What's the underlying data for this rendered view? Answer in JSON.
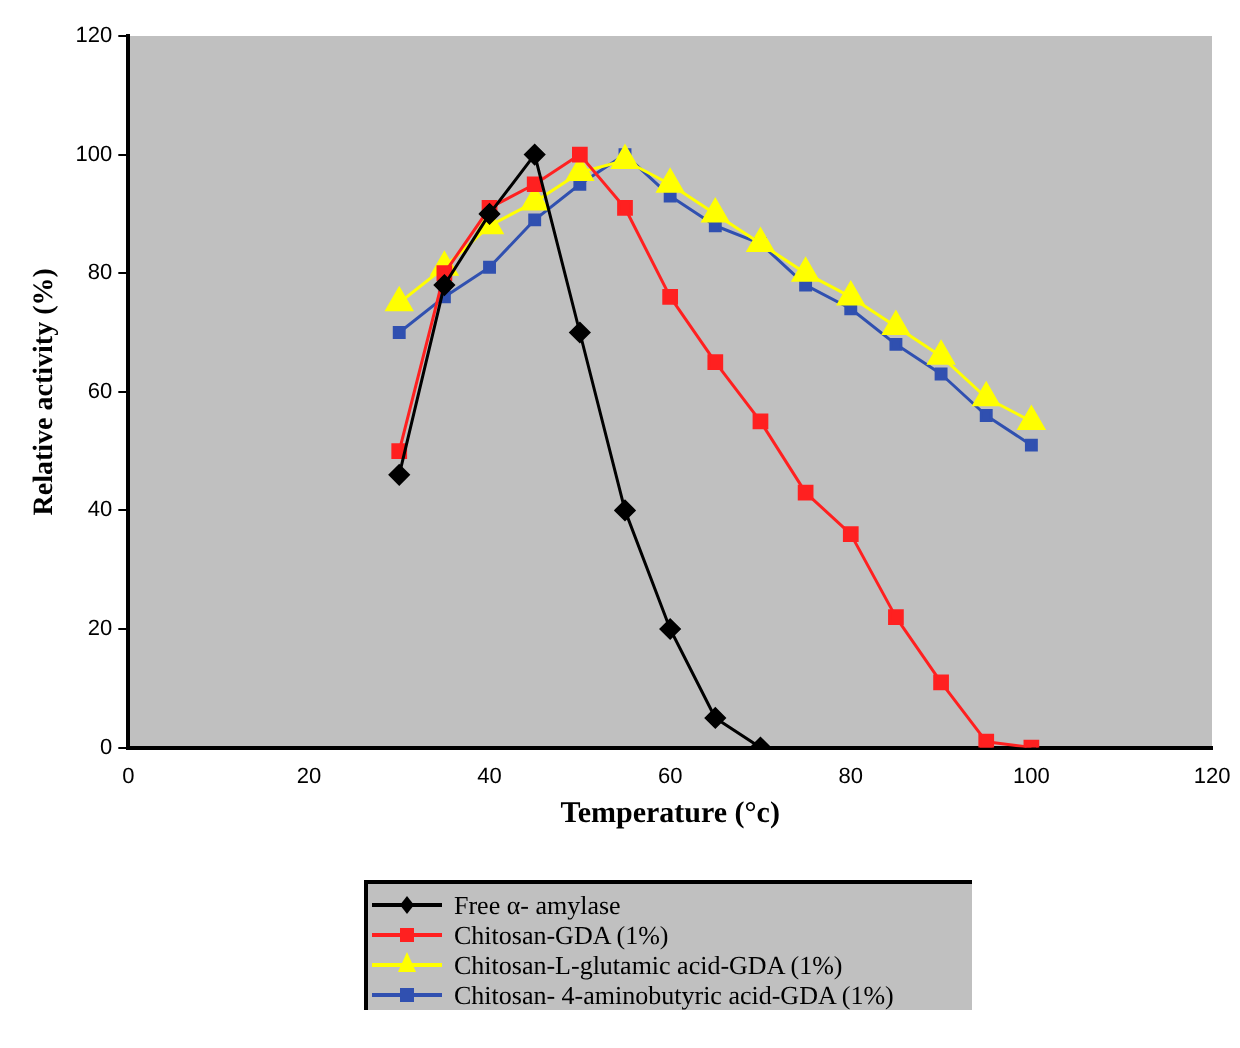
{
  "chart_data": {
    "type": "line",
    "xlabel": "Temperature (°c)",
    "ylabel": "Relative activity (%)",
    "xlim": [
      0,
      120
    ],
    "xticks": [
      0,
      20,
      40,
      60,
      80,
      100,
      120
    ],
    "ylim": [
      0,
      120
    ],
    "yticks": [
      0,
      20,
      40,
      60,
      80,
      100,
      120
    ],
    "grid": false,
    "legend": "bottom",
    "series": [
      {
        "name": "Free α- amylase",
        "color": "#000000",
        "marker": "diamond",
        "x": [
          30,
          35,
          40,
          45,
          50,
          55,
          60,
          65,
          70
        ],
        "values": [
          46,
          78,
          90,
          100,
          70,
          40,
          20,
          5,
          0
        ]
      },
      {
        "name": "Chitosan-GDA (1%)",
        "color": "#ff2020",
        "marker": "square",
        "x": [
          30,
          35,
          40,
          45,
          50,
          55,
          60,
          65,
          70,
          75,
          80,
          85,
          90,
          95,
          100
        ],
        "values": [
          50,
          80,
          91,
          95,
          100,
          91,
          76,
          65,
          55,
          43,
          36,
          22,
          11,
          1,
          0
        ]
      },
      {
        "name": "Chitosan-L-glutamic acid-GDA (1%)",
        "color": "#ffff00",
        "marker": "triangle",
        "x": [
          30,
          35,
          40,
          45,
          50,
          55,
          60,
          65,
          70,
          75,
          80,
          85,
          90,
          95,
          100
        ],
        "values": [
          75,
          81,
          88,
          92,
          97,
          99,
          95,
          90,
          85,
          80,
          76,
          71,
          66,
          59,
          55
        ]
      },
      {
        "name": "Chitosan- 4-aminobutyric acid-GDA (1%)",
        "color": "#3050b0",
        "marker": "square",
        "x": [
          30,
          35,
          40,
          45,
          50,
          55,
          60,
          65,
          70,
          75,
          80,
          85,
          90,
          95,
          100
        ],
        "values": [
          70,
          76,
          81,
          89,
          95,
          100,
          93,
          88,
          85,
          78,
          74,
          68,
          63,
          56,
          51
        ]
      }
    ]
  }
}
